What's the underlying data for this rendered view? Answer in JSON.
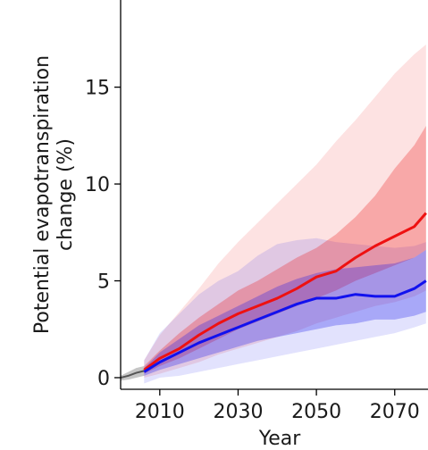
{
  "chart_data": {
    "type": "area",
    "xlabel": "Year",
    "ylabel_lines": [
      "Potential evapotranspiration",
      "change (%)"
    ],
    "xlim": [
      2000,
      2078.5
    ],
    "ylim": [
      -0.6,
      19.5
    ],
    "xticks": [
      2010,
      2030,
      2050,
      2070
    ],
    "yticks": [
      0,
      5,
      10,
      15
    ],
    "grid": false,
    "legend": "none",
    "historical": {
      "color": "#8c8c8c",
      "x": [
        2000,
        2002,
        2004,
        2006
      ],
      "mean": [
        0.0,
        0.1,
        0.25,
        0.35
      ],
      "low": [
        -0.15,
        -0.1,
        0.0,
        0.1
      ],
      "high": [
        0.1,
        0.3,
        0.5,
        0.6
      ]
    },
    "series": [
      {
        "color": "#ee1111",
        "x": [
          2006,
          2010,
          2015,
          2020,
          2025,
          2030,
          2035,
          2040,
          2045,
          2050,
          2055,
          2060,
          2065,
          2070,
          2075,
          2078
        ],
        "mean": [
          0.4,
          1.0,
          1.5,
          2.2,
          2.8,
          3.3,
          3.7,
          4.1,
          4.6,
          5.2,
          5.5,
          6.2,
          6.8,
          7.3,
          7.8,
          8.5
        ],
        "p25": [
          0.2,
          0.6,
          1.0,
          1.5,
          2.0,
          2.5,
          2.9,
          3.3,
          3.7,
          4.1,
          4.5,
          5.0,
          5.4,
          5.8,
          6.2,
          6.6
        ],
        "p75": [
          0.6,
          1.4,
          2.3,
          3.1,
          3.8,
          4.5,
          5.0,
          5.6,
          6.2,
          6.7,
          7.4,
          8.3,
          9.4,
          10.8,
          12.0,
          13.0
        ],
        "min": [
          0.0,
          0.2,
          0.5,
          0.8,
          1.2,
          1.5,
          1.8,
          2.1,
          2.4,
          2.8,
          3.1,
          3.4,
          3.7,
          3.9,
          4.2,
          4.5
        ],
        "max": [
          0.9,
          2.2,
          3.4,
          4.6,
          5.9,
          7.0,
          8.0,
          9.0,
          10.0,
          11.0,
          12.2,
          13.3,
          14.5,
          15.7,
          16.7,
          17.2
        ]
      },
      {
        "color": "#1111ee",
        "x": [
          2006,
          2010,
          2015,
          2020,
          2025,
          2030,
          2035,
          2040,
          2045,
          2050,
          2055,
          2060,
          2065,
          2070,
          2075,
          2078
        ],
        "mean": [
          0.3,
          0.8,
          1.3,
          1.8,
          2.2,
          2.6,
          3.0,
          3.4,
          3.8,
          4.1,
          4.1,
          4.3,
          4.2,
          4.2,
          4.6,
          5.0
        ],
        "p25": [
          0.1,
          0.4,
          0.7,
          1.0,
          1.3,
          1.6,
          1.9,
          2.1,
          2.3,
          2.5,
          2.7,
          2.8,
          3.0,
          3.0,
          3.2,
          3.4
        ],
        "p75": [
          0.5,
          1.3,
          2.0,
          2.7,
          3.2,
          3.7,
          4.2,
          4.7,
          5.1,
          5.4,
          5.6,
          5.7,
          5.8,
          5.9,
          6.2,
          6.6
        ],
        "min": [
          -0.3,
          0.0,
          0.1,
          0.3,
          0.5,
          0.7,
          0.9,
          1.1,
          1.3,
          1.5,
          1.7,
          1.9,
          2.1,
          2.3,
          2.6,
          2.8
        ],
        "max": [
          0.9,
          2.3,
          3.3,
          4.3,
          5.0,
          5.5,
          6.3,
          6.9,
          7.1,
          7.2,
          7.0,
          6.9,
          6.8,
          6.7,
          6.8,
          7.0
        ]
      }
    ]
  }
}
